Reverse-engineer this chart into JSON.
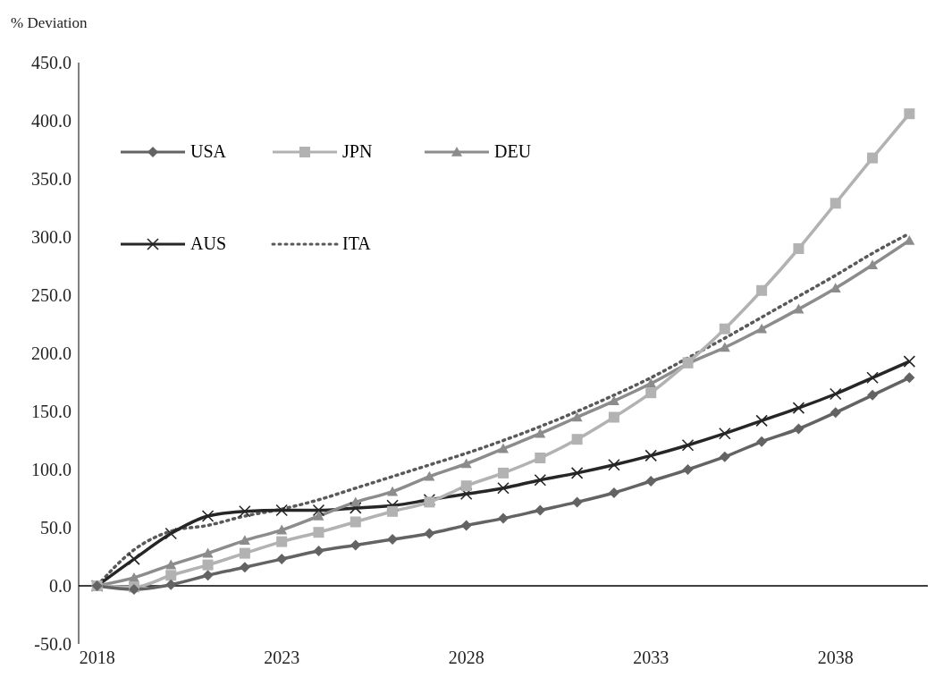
{
  "chart_data": {
    "type": "line",
    "annotations": [
      "% Deviation"
    ],
    "x": [
      2018,
      2019,
      2020,
      2021,
      2022,
      2023,
      2024,
      2025,
      2026,
      2027,
      2028,
      2029,
      2030,
      2031,
      2032,
      2033,
      2034,
      2035,
      2036,
      2037,
      2038,
      2039,
      2040
    ],
    "xlim": [
      2017.5,
      2040.5
    ],
    "xticks": [
      2018,
      2023,
      2028,
      2033,
      2038
    ],
    "ylim": [
      -50,
      450
    ],
    "yticks": [
      {
        "value": -50,
        "label": "-50.0"
      },
      {
        "value": 0,
        "label": "0.0"
      },
      {
        "value": 50,
        "label": "50.0"
      },
      {
        "value": 100,
        "label": "100.0"
      },
      {
        "value": 150,
        "label": "150.0"
      },
      {
        "value": 200,
        "label": "200.0"
      },
      {
        "value": 250,
        "label": "250.0"
      },
      {
        "value": 300,
        "label": "300.0"
      },
      {
        "value": 350,
        "label": "350.0"
      },
      {
        "value": 400,
        "label": "400.0"
      },
      {
        "value": 450,
        "label": "450.0"
      }
    ],
    "ref_lines": [
      {
        "axis": "y",
        "value": 0,
        "color": "#000000"
      }
    ],
    "legend": "top left",
    "series": [
      {
        "name": "USA",
        "color": "#636363",
        "marker": "diamond",
        "values": [
          0,
          -3,
          1,
          9,
          16,
          23,
          30,
          35,
          40,
          45,
          52,
          58,
          65,
          72,
          80,
          90,
          100,
          111,
          124,
          135,
          149,
          164,
          179
        ]
      },
      {
        "name": "JPN",
        "color": "#b2b2b2",
        "marker": "square",
        "values": [
          0,
          -1,
          9,
          18,
          28,
          38,
          46,
          55,
          64,
          72,
          86,
          97,
          110,
          126,
          145,
          166,
          192,
          221,
          254,
          290,
          329,
          368,
          406
        ]
      },
      {
        "name": "DEU",
        "color": "#8c8c8c",
        "marker": "triangle",
        "values": [
          0,
          7,
          18,
          28,
          39,
          48,
          60,
          72,
          81,
          94,
          105,
          118,
          131,
          145,
          159,
          174,
          191,
          205,
          221,
          238,
          256,
          276,
          297
        ]
      },
      {
        "name": "AUS",
        "color": "#262626",
        "marker": "cross",
        "values": [
          0,
          23,
          45,
          60,
          64,
          65,
          65,
          67,
          69,
          74,
          79,
          84,
          91,
          97,
          104,
          112,
          121,
          131,
          142,
          153,
          165,
          179,
          193
        ]
      },
      {
        "name": "ITA",
        "color": "#595959",
        "marker": "none",
        "line_style": "dotted",
        "values": [
          0,
          31,
          47,
          52,
          60,
          66,
          74,
          84,
          94,
          104,
          114,
          125,
          137,
          150,
          164,
          179,
          196,
          213,
          231,
          249,
          267,
          286,
          303
        ]
      }
    ]
  }
}
